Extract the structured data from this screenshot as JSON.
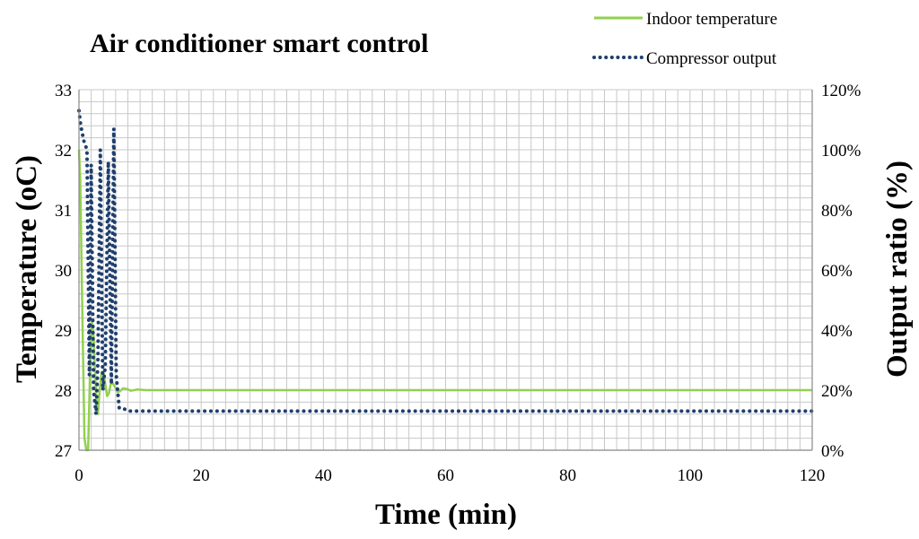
{
  "chart_data": {
    "type": "line",
    "title": "Air conditioner smart control",
    "xlabel": "Time (min)",
    "ylabel_left": "Temperature (oC)",
    "ylabel_right": "Output ratio (%)",
    "xlim": [
      0,
      120
    ],
    "x_ticks": [
      "0",
      "20",
      "40",
      "60",
      "80",
      "100",
      "120"
    ],
    "y_left_lim": [
      27,
      33
    ],
    "y_left_ticks": [
      "27",
      "28",
      "29",
      "30",
      "31",
      "32",
      "33"
    ],
    "y_right_lim": [
      0,
      120
    ],
    "y_right_ticks": [
      "0%",
      "20%",
      "40%",
      "60%",
      "80%",
      "100%",
      "120%"
    ],
    "grid": true,
    "legend_position": "top-right",
    "series": [
      {
        "name": "Indoor temperature",
        "axis": "left",
        "style": "solid",
        "color": "#92D050",
        "x": [
          0,
          0.2,
          0.5,
          0.9,
          1.2,
          1.5,
          1.8,
          2.1,
          2.4,
          2.8,
          3.1,
          3.4,
          3.7,
          4.0,
          4.3,
          4.6,
          4.9,
          5.2,
          5.5,
          5.9,
          6.3,
          6.7,
          7.2,
          7.8,
          8.5,
          9.5,
          11,
          13,
          20,
          40,
          60,
          80,
          100,
          120
        ],
        "values": [
          32.0,
          31.5,
          29.6,
          27.2,
          27.0,
          27.0,
          28.3,
          29.15,
          28.9,
          27.9,
          27.6,
          28.0,
          28.3,
          28.3,
          28.1,
          27.9,
          27.95,
          28.1,
          28.12,
          28.05,
          27.97,
          27.98,
          28.03,
          28.02,
          27.99,
          28.01,
          28.0,
          28.0,
          28.0,
          28.0,
          28.0,
          28.0,
          28.0,
          28.0
        ]
      },
      {
        "name": "Compressor output",
        "axis": "right",
        "style": "dotted",
        "color": "#1F3F6E",
        "x": [
          0,
          0.3,
          0.8,
          1.3,
          1.7,
          2.0,
          2.4,
          2.8,
          3.1,
          3.5,
          3.9,
          4.3,
          4.8,
          5.3,
          5.7,
          6.1,
          6.6,
          7.2,
          8,
          10,
          15,
          20,
          30,
          40,
          50,
          60,
          70,
          80,
          90,
          100,
          110,
          120
        ],
        "values": [
          113,
          108,
          103,
          100,
          25,
          95,
          20,
          12,
          30,
          100,
          20,
          28,
          96,
          22,
          107,
          25,
          14,
          14,
          13,
          13,
          13,
          13,
          13,
          13,
          13,
          13,
          13,
          13,
          13,
          13,
          13,
          13
        ]
      }
    ]
  }
}
